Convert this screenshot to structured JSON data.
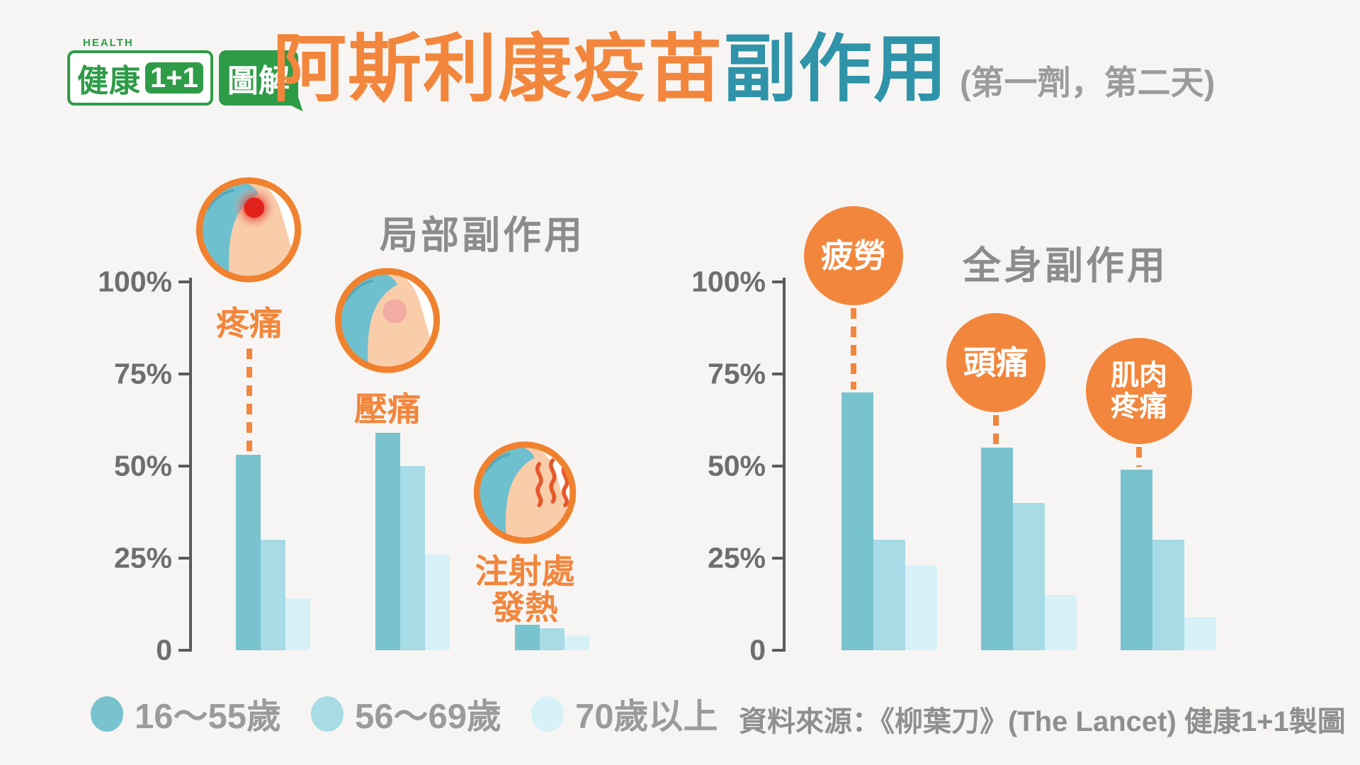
{
  "logo": {
    "health_label": "HEALTH",
    "brand_main": "健康",
    "brand_num": "1+1",
    "brand_suffix": "圖解"
  },
  "title": {
    "main_orange": "阿斯利康疫苗",
    "main_teal": "副作用",
    "subtitle": "(第一劑，第二天)"
  },
  "colors": {
    "orange": "#F2863C",
    "teal": "#2F93A9",
    "title_gray": "#8C8C8C",
    "axis_gray": "#5A5A5A",
    "tick_label_gray": "#6E6E6E",
    "legend_gray": "#9B9B9B",
    "background": "#F7F5F3",
    "logo_green": "#2E9B47",
    "bar_colors": [
      "#79C3CF",
      "#A7DBE5",
      "#D7F1F8"
    ]
  },
  "axis_ticks": [
    "100%",
    "75%",
    "50%",
    "25%",
    "0"
  ],
  "legend": [
    {
      "label": "16～55歲",
      "color": "#79C3CF"
    },
    {
      "label": "56～69歲",
      "color": "#A7DBE5"
    },
    {
      "label": "70歲以上",
      "color": "#D7F1F8"
    }
  ],
  "source_note": "資料來源：《柳葉刀》(The Lancet)  健康1+1製圖",
  "chart_data": [
    {
      "type": "bar",
      "title": "局部副作用",
      "categories": [
        "疼痛",
        "壓痛",
        "注射處發熱"
      ],
      "category_lines": [
        [
          "疼痛"
        ],
        [
          "壓痛"
        ],
        [
          "注射處",
          "發熱"
        ]
      ],
      "icons": [
        "pain-spot",
        "tender-spot",
        "heat-waves"
      ],
      "series": [
        {
          "name": "16～55歲",
          "values": [
            53,
            59,
            7
          ]
        },
        {
          "name": "56～69歲",
          "values": [
            30,
            50,
            6
          ]
        },
        {
          "name": "70歲以上",
          "values": [
            14,
            26,
            4
          ]
        }
      ],
      "unit": "%",
      "ylim": [
        0,
        100
      ],
      "grid": false,
      "legend_position": "bottom"
    },
    {
      "type": "bar",
      "title": "全身副作用",
      "categories": [
        "疲勞",
        "頭痛",
        "肌肉疼痛"
      ],
      "category_lines": [
        [
          "疲勞"
        ],
        [
          "頭痛"
        ],
        [
          "肌肉",
          "疼痛"
        ]
      ],
      "series": [
        {
          "name": "16～55歲",
          "values": [
            70,
            55,
            49
          ]
        },
        {
          "name": "56～69歲",
          "values": [
            30,
            40,
            30
          ]
        },
        {
          "name": "70歲以上",
          "values": [
            23,
            15,
            9
          ]
        }
      ],
      "unit": "%",
      "ylim": [
        0,
        100
      ],
      "grid": false,
      "legend_position": "bottom"
    }
  ]
}
